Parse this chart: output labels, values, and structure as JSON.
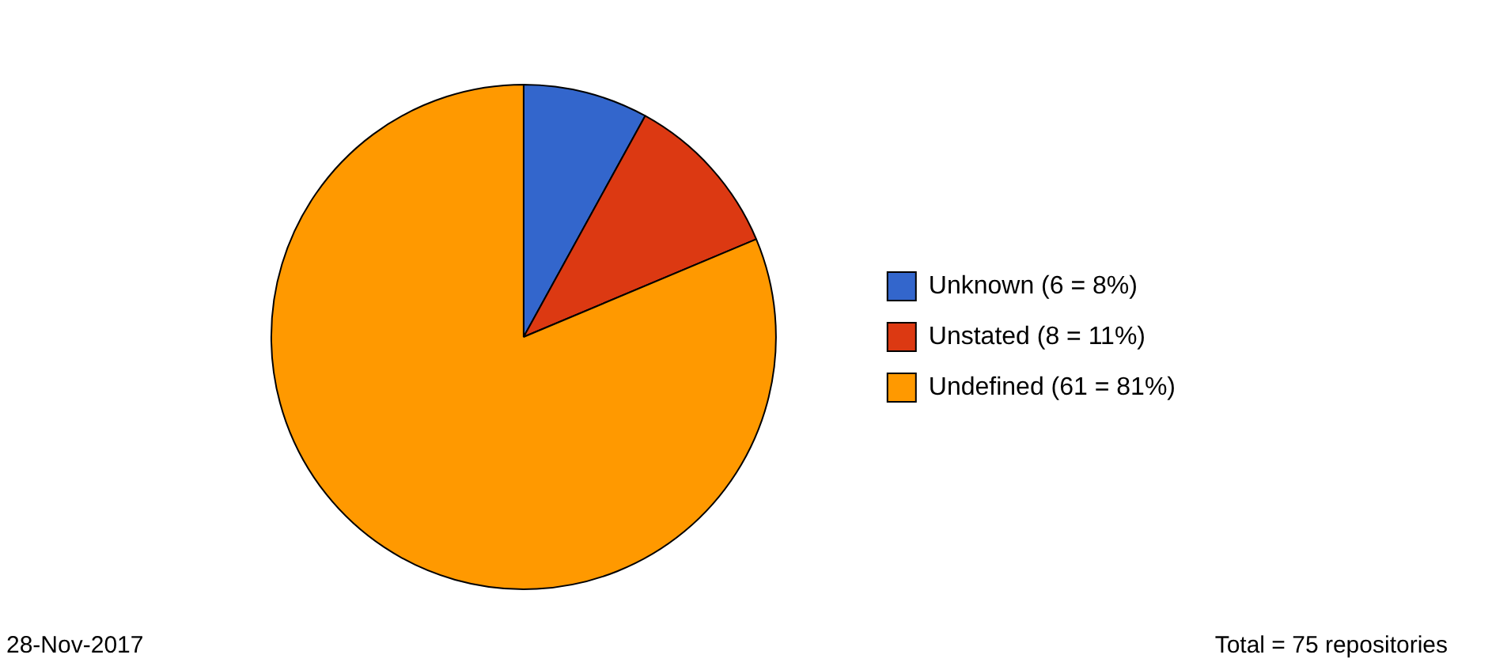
{
  "chart_data": {
    "type": "pie",
    "categories": [
      "Unknown (6 = 8%)",
      "Unstated (8 = 11%)",
      "Undefined (61 = 81%)"
    ],
    "values": [
      6,
      8,
      61
    ],
    "colors": [
      "#3366cc",
      "#dc3912",
      "#ff9900"
    ],
    "legend": "right",
    "annotations": [
      "28-Nov-2017",
      "Total = 75 repositories"
    ]
  }
}
